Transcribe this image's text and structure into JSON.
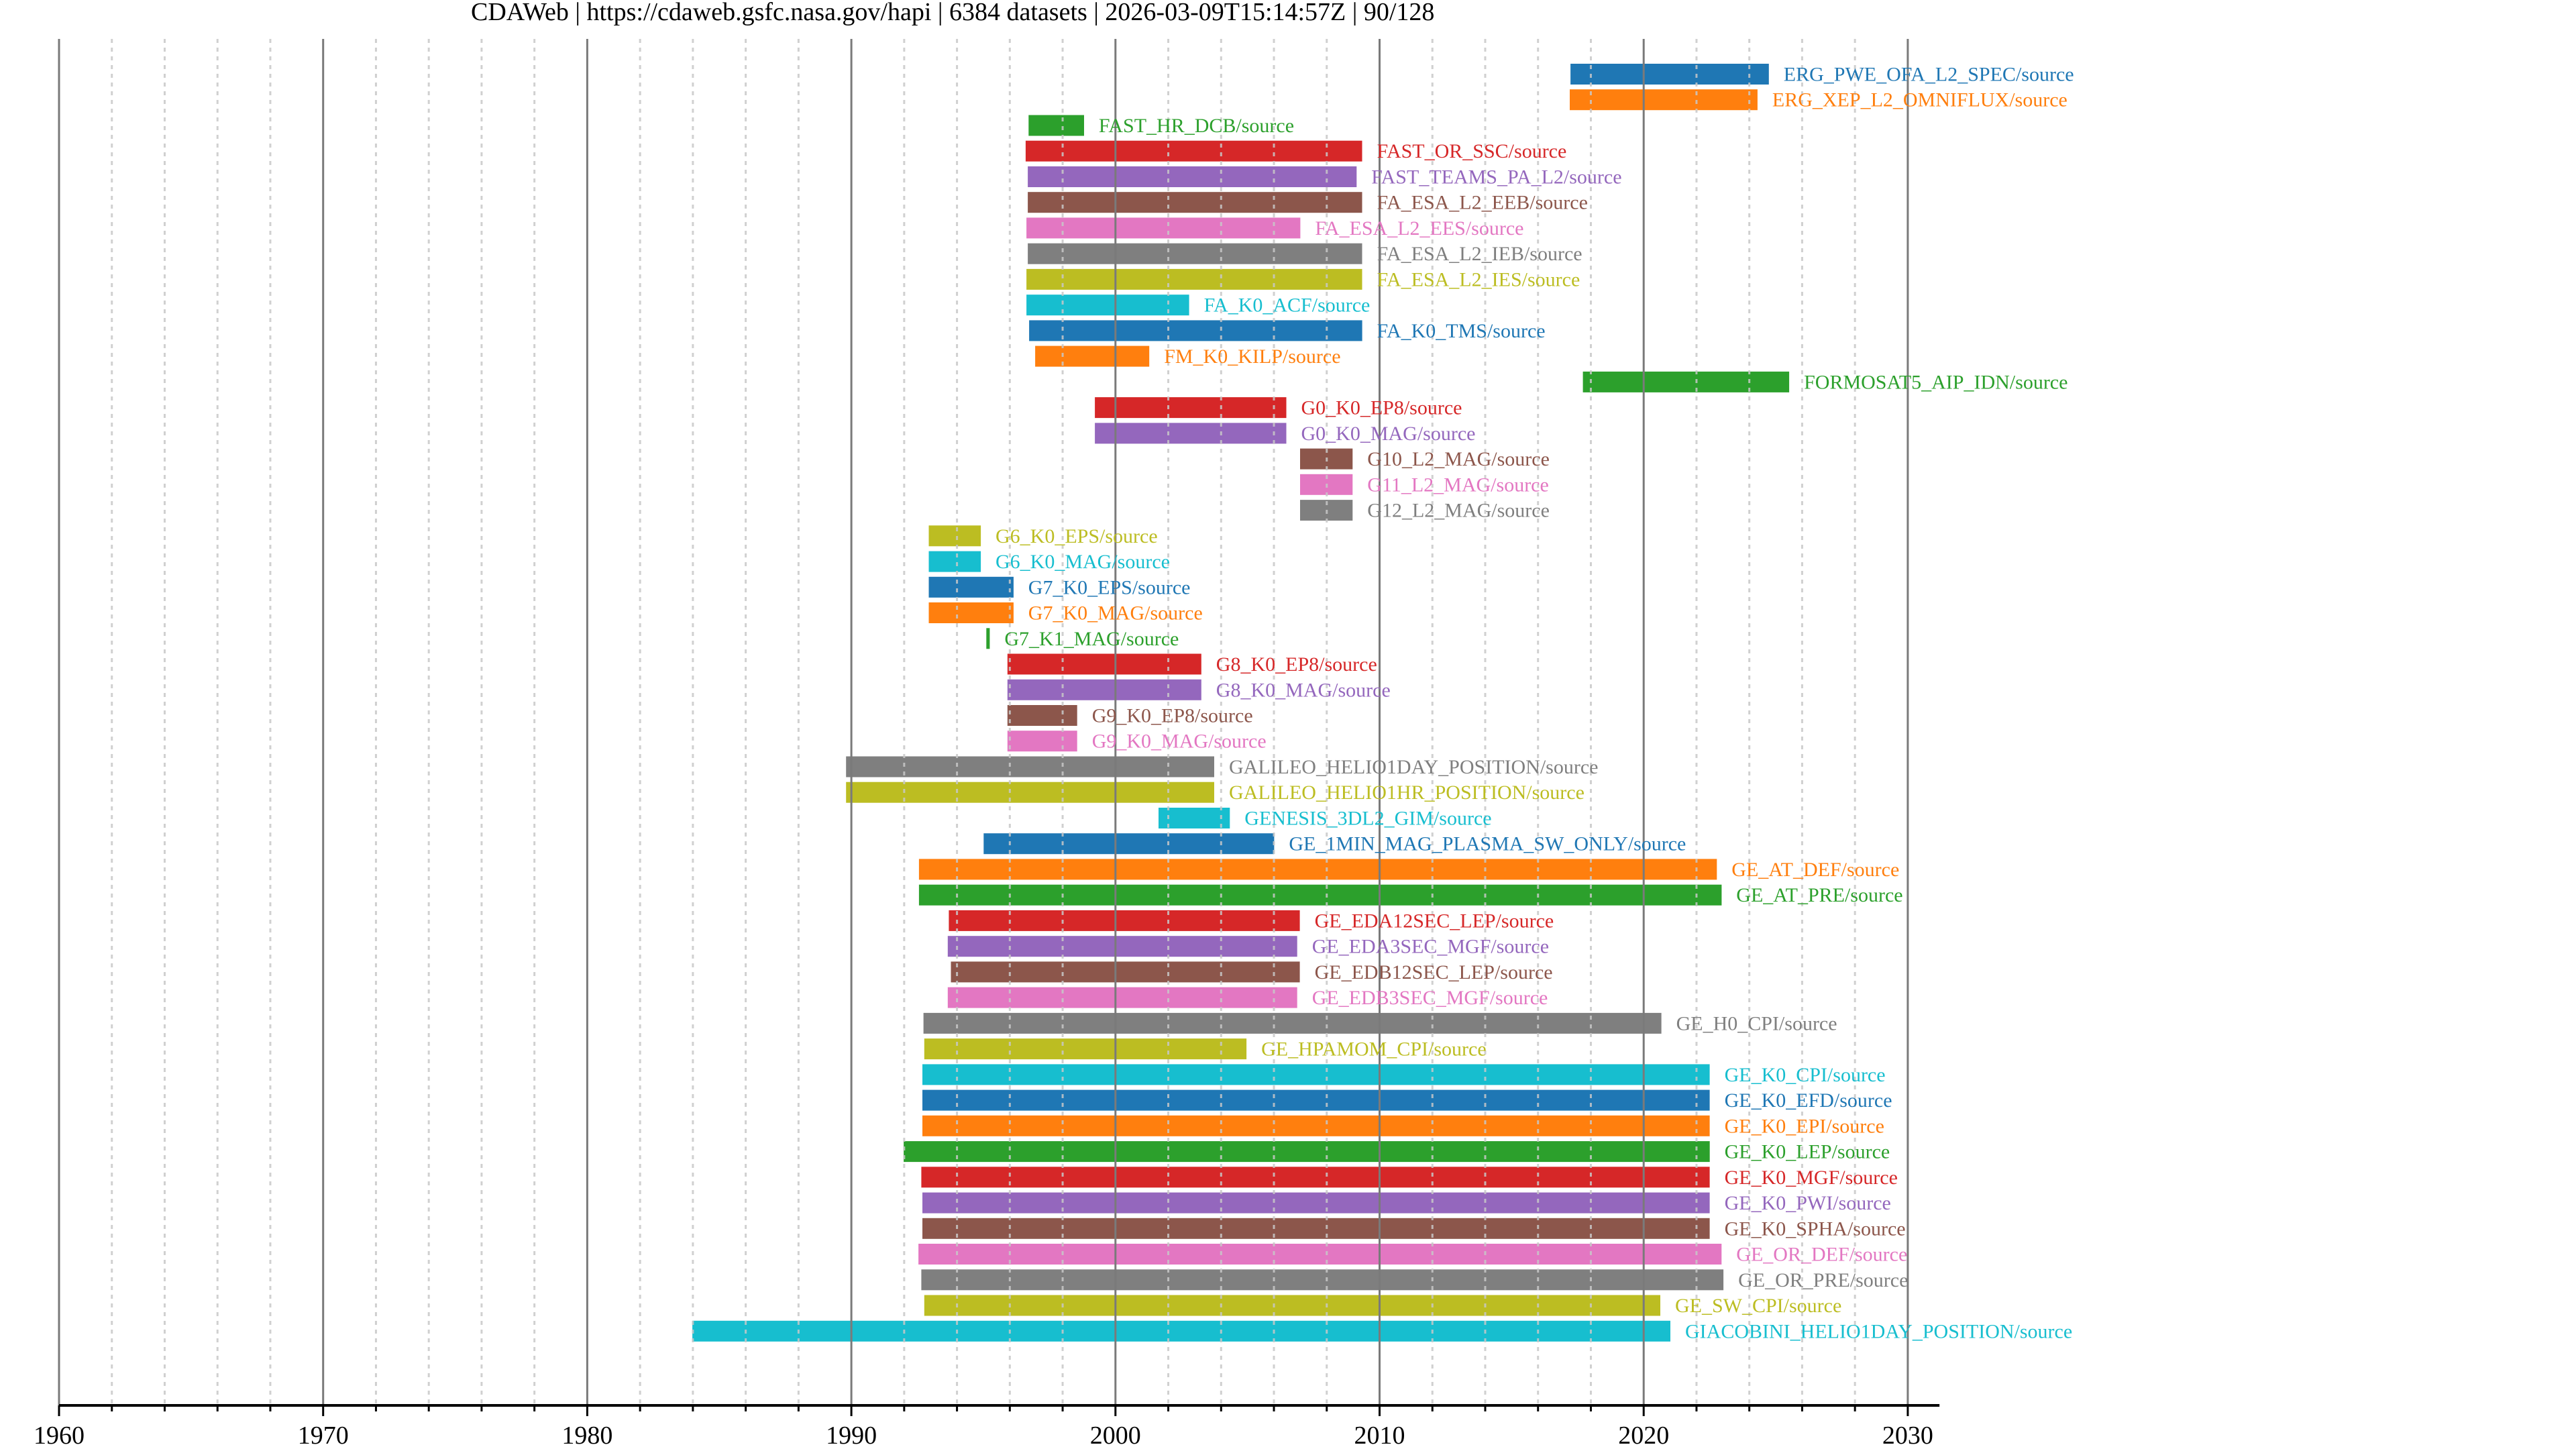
{
  "title": "CDAWeb | https://cdaweb.gsfc.nasa.gov/hapi | 6384 datasets | 2026-03-09T15:14:57Z | 90/128",
  "chart_data": {
    "type": "timeline",
    "title": "CDAWeb | https://cdaweb.gsfc.nasa.gov/hapi | 6384 datasets | 2026-03-09T15:14:57Z | 90/128",
    "xlabel": "",
    "ylabel": "",
    "xlim": [
      1960,
      2031.2
    ],
    "x_ticks": [
      1960,
      1970,
      1980,
      1990,
      2000,
      2010,
      2020,
      2030
    ],
    "x_tick_labels": [
      "1960",
      "1970",
      "1980",
      "1990",
      "2000",
      "2010",
      "2020",
      "2030"
    ],
    "minor_tick_step_years": 2,
    "grid": true,
    "legend": "none (labels beside bars)",
    "palette": [
      "#1f77b4",
      "#ff7f0e",
      "#2ca02c",
      "#d62728",
      "#9467bd",
      "#8c564b",
      "#e377c2",
      "#7f7f7f",
      "#bcbd22",
      "#17becf"
    ],
    "series": [
      {
        "name": "ERG_PWE_OFA_L2_SPEC/source",
        "start": 2017.23,
        "end": 2024.74
      },
      {
        "name": "ERG_XEP_L2_OMNIFLUX/source",
        "start": 2017.2,
        "end": 2024.31
      },
      {
        "name": "FAST_HR_DCB/source",
        "start": 1996.71,
        "end": 1998.81
      },
      {
        "name": "FAST_OR_SSC/source",
        "start": 1996.6,
        "end": 2009.34
      },
      {
        "name": "FAST_TEAMS_PA_L2/source",
        "start": 1996.68,
        "end": 2009.13
      },
      {
        "name": "FA_ESA_L2_EEB/source",
        "start": 1996.68,
        "end": 2009.34
      },
      {
        "name": "FA_ESA_L2_EES/source",
        "start": 1996.63,
        "end": 2007.0
      },
      {
        "name": "FA_ESA_L2_IEB/source",
        "start": 1996.68,
        "end": 2009.34
      },
      {
        "name": "FA_ESA_L2_IES/source",
        "start": 1996.63,
        "end": 2009.34
      },
      {
        "name": "FA_K0_ACF/source",
        "start": 1996.63,
        "end": 2002.79
      },
      {
        "name": "FA_K0_TMS/source",
        "start": 1996.73,
        "end": 2009.34
      },
      {
        "name": "FM_K0_KILP/source",
        "start": 1996.96,
        "end": 2001.28
      },
      {
        "name": "FORMOSAT5_AIP_IDN/source",
        "start": 2017.7,
        "end": 2025.51
      },
      {
        "name": "G0_K0_EP8/source",
        "start": 1999.22,
        "end": 2006.47
      },
      {
        "name": "G0_K0_MAG/source",
        "start": 1999.22,
        "end": 2006.47
      },
      {
        "name": "G10_L2_MAG/source",
        "start": 2006.99,
        "end": 2008.98
      },
      {
        "name": "G11_L2_MAG/source",
        "start": 2006.99,
        "end": 2008.98
      },
      {
        "name": "G12_L2_MAG/source",
        "start": 2006.99,
        "end": 2008.98
      },
      {
        "name": "G6_K0_EPS/source",
        "start": 1992.93,
        "end": 1994.9
      },
      {
        "name": "G6_K0_MAG/source",
        "start": 1992.93,
        "end": 1994.9
      },
      {
        "name": "G7_K0_EPS/source",
        "start": 1992.93,
        "end": 1996.14
      },
      {
        "name": "G7_K0_MAG/source",
        "start": 1992.93,
        "end": 1996.14
      },
      {
        "name": "G7_K1_MAG/source",
        "start": 1995.11,
        "end": 1995.24
      },
      {
        "name": "G8_K0_EP8/source",
        "start": 1995.91,
        "end": 2003.25
      },
      {
        "name": "G8_K0_MAG/source",
        "start": 1995.91,
        "end": 2003.25
      },
      {
        "name": "G9_K0_EP8/source",
        "start": 1995.91,
        "end": 1998.55
      },
      {
        "name": "G9_K0_MAG/source",
        "start": 1995.91,
        "end": 1998.55
      },
      {
        "name": "GALILEO_HELIO1DAY_POSITION/source",
        "start": 1989.8,
        "end": 2003.74
      },
      {
        "name": "GALILEO_HELIO1HR_POSITION/source",
        "start": 1989.8,
        "end": 2003.74
      },
      {
        "name": "GENESIS_3DL2_GIM/source",
        "start": 2001.63,
        "end": 2004.33
      },
      {
        "name": "GE_1MIN_MAG_PLASMA_SW_ONLY/source",
        "start": 1995.01,
        "end": 2006.01
      },
      {
        "name": "GE_AT_DEF/source",
        "start": 1992.56,
        "end": 2022.77
      },
      {
        "name": "GE_AT_PRE/source",
        "start": 1992.56,
        "end": 2022.95
      },
      {
        "name": "GE_EDA12SEC_LEP/source",
        "start": 1993.69,
        "end": 2006.98
      },
      {
        "name": "GE_EDA3SEC_MGF/source",
        "start": 1993.65,
        "end": 2006.88
      },
      {
        "name": "GE_EDB12SEC_LEP/source",
        "start": 1993.77,
        "end": 2006.98
      },
      {
        "name": "GE_EDB3SEC_MGF/source",
        "start": 1993.65,
        "end": 2006.88
      },
      {
        "name": "GE_H0_CPI/source",
        "start": 1992.73,
        "end": 2020.67
      },
      {
        "name": "GE_HPAMOM_CPI/source",
        "start": 1992.76,
        "end": 2004.96
      },
      {
        "name": "GE_K0_CPI/source",
        "start": 1992.69,
        "end": 2022.5
      },
      {
        "name": "GE_K0_EFD/source",
        "start": 1992.69,
        "end": 2022.5
      },
      {
        "name": "GE_K0_EPI/source",
        "start": 1992.69,
        "end": 2022.5
      },
      {
        "name": "GE_K0_LEP/source",
        "start": 1991.98,
        "end": 2022.5
      },
      {
        "name": "GE_K0_MGF/source",
        "start": 1992.65,
        "end": 2022.5
      },
      {
        "name": "GE_K0_PWI/source",
        "start": 1992.69,
        "end": 2022.5
      },
      {
        "name": "GE_K0_SPHA/source",
        "start": 1992.69,
        "end": 2022.5
      },
      {
        "name": "GE_OR_DEF/source",
        "start": 1992.54,
        "end": 2022.95
      },
      {
        "name": "GE_OR_PRE/source",
        "start": 1992.65,
        "end": 2023.02
      },
      {
        "name": "GE_SW_CPI/source",
        "start": 1992.76,
        "end": 2020.63
      },
      {
        "name": "GIACOBINI_HELIO1DAY_POSITION/source",
        "start": 1983.98,
        "end": 2021.01
      }
    ]
  }
}
